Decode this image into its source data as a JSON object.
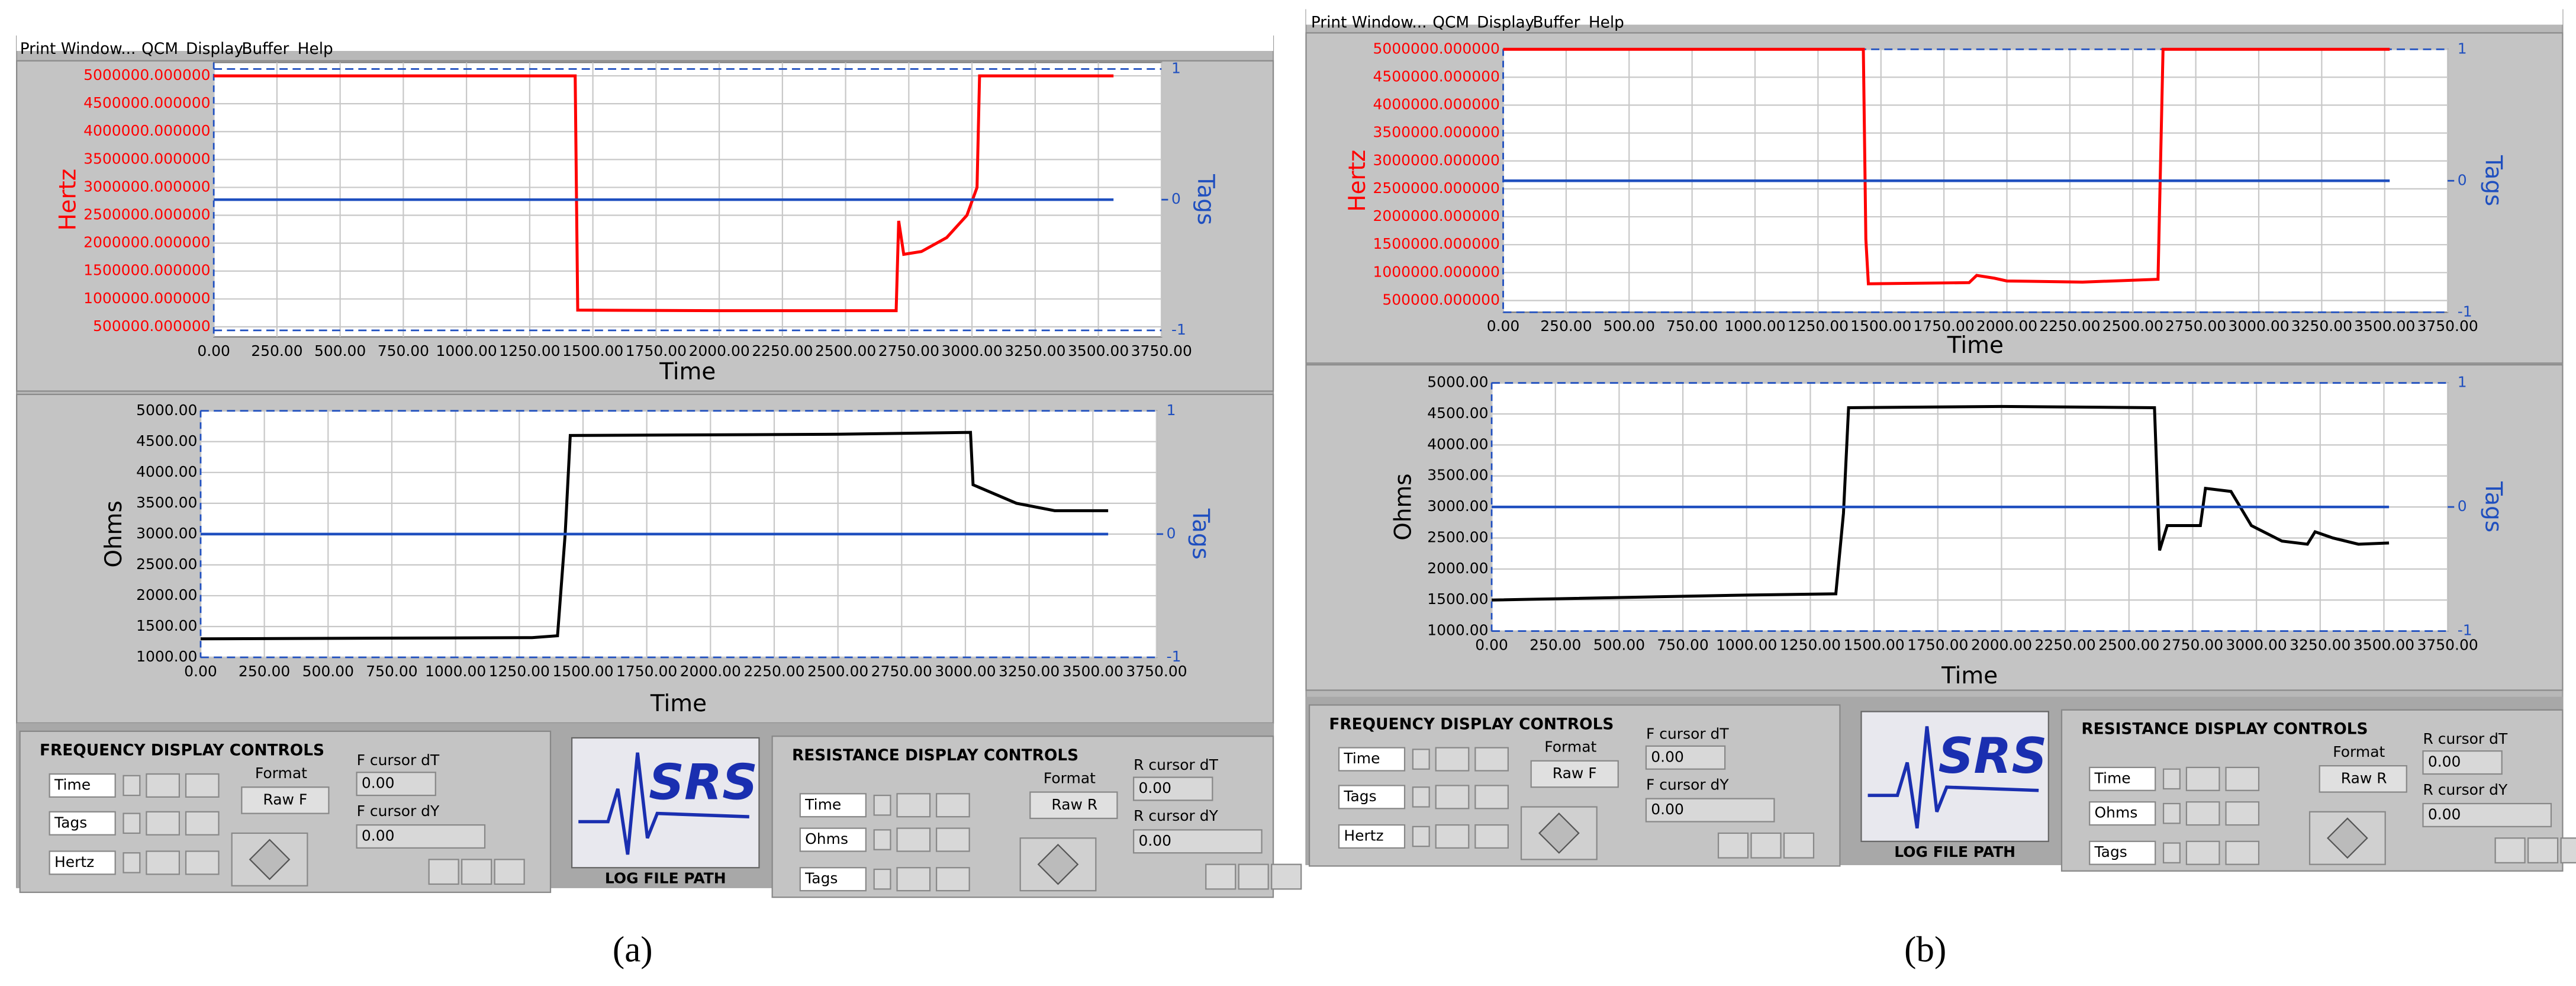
{
  "panels": [
    {
      "caption": "(a)",
      "menu": [
        "Print Window...",
        "QCM",
        "Display",
        "Buffer",
        "Help"
      ],
      "chart_data": [
        {
          "type": "line",
          "ylabel": "Hertz",
          "y2label": "Tags",
          "xlabel": "Time",
          "xlim": [
            0,
            3750
          ],
          "xticks": [
            {
              "value": 0,
              "label": "0.00"
            },
            {
              "value": 250,
              "label": "250.00"
            },
            {
              "value": 500,
              "label": "500.00"
            },
            {
              "value": 750,
              "label": "750.00"
            },
            {
              "value": 1000,
              "label": "1000.00"
            },
            {
              "value": 1250,
              "label": "1250.00"
            },
            {
              "value": 1500,
              "label": "1500.00"
            },
            {
              "value": 1750,
              "label": "1750.00"
            },
            {
              "value": 2000,
              "label": "2000.00"
            },
            {
              "value": 2250,
              "label": "2250.00"
            },
            {
              "value": 2500,
              "label": "2500.00"
            },
            {
              "value": 2750,
              "label": "2750.00"
            },
            {
              "value": 3000,
              "label": "3000.00"
            },
            {
              "value": 3250,
              "label": "3250.00"
            },
            {
              "value": 3500,
              "label": "3500.00"
            },
            {
              "value": 3750,
              "label": "3750.00"
            }
          ],
          "ylim": [
            320000,
            5240000
          ],
          "yticks": [
            {
              "value": 500000,
              "label": "500000.000000"
            },
            {
              "value": 1000000,
              "label": "1000000.000000"
            },
            {
              "value": 1500000,
              "label": "1500000.000000"
            },
            {
              "value": 2000000,
              "label": "2000000.000000"
            },
            {
              "value": 2500000,
              "label": "2500000.000000"
            },
            {
              "value": 3000000,
              "label": "3000000.000000"
            },
            {
              "value": 3500000,
              "label": "3500000.000000"
            },
            {
              "value": 4000000,
              "label": "4000000.000000"
            },
            {
              "value": 4500000,
              "label": "4500000.000000"
            },
            {
              "value": 5000000,
              "label": "5000000.000000"
            }
          ],
          "y2lim": [
            -1.05,
            1.05
          ],
          "y2ticks": [
            -1,
            0,
            1
          ],
          "grid": true,
          "series": [
            {
              "name": "Hertz",
              "color": "#ff0000",
              "x": [
                0,
                1430,
                1440,
                2000,
                2700,
                2710,
                2730,
                2800,
                2900,
                2980,
                3020,
                3030,
                3560
              ],
              "values": [
                5000000,
                5000000,
                800000,
                790000,
                790000,
                2400000,
                1800000,
                1850000,
                2100000,
                2500000,
                3000000,
                5000000,
                5000000
              ]
            },
            {
              "name": "Tags",
              "color": "#1f4fbf",
              "axis": "y2",
              "x": [
                0,
                3560
              ],
              "values": [
                0,
                0
              ]
            }
          ]
        },
        {
          "type": "line",
          "ylabel": "Ohms",
          "y2label": "Tags",
          "xlabel": "Time",
          "xlim": [
            0,
            3750
          ],
          "xticks": [
            {
              "value": 0,
              "label": "0.00"
            },
            {
              "value": 250,
              "label": "250.00"
            },
            {
              "value": 500,
              "label": "500.00"
            },
            {
              "value": 750,
              "label": "750.00"
            },
            {
              "value": 1000,
              "label": "1000.00"
            },
            {
              "value": 1250,
              "label": "1250.00"
            },
            {
              "value": 1500,
              "label": "1500.00"
            },
            {
              "value": 1750,
              "label": "1750.00"
            },
            {
              "value": 2000,
              "label": "2000.00"
            },
            {
              "value": 2250,
              "label": "2250.00"
            },
            {
              "value": 2500,
              "label": "2500.00"
            },
            {
              "value": 2750,
              "label": "2750.00"
            },
            {
              "value": 3000,
              "label": "3000.00"
            },
            {
              "value": 3250,
              "label": "3250.00"
            },
            {
              "value": 3500,
              "label": "3500.00"
            },
            {
              "value": 3750,
              "label": "3750.00"
            }
          ],
          "ylim": [
            1000,
            5000
          ],
          "yticks": [
            {
              "value": 1000,
              "label": "1000.00"
            },
            {
              "value": 1500,
              "label": "1500.00"
            },
            {
              "value": 2000,
              "label": "2000.00"
            },
            {
              "value": 2500,
              "label": "2500.00"
            },
            {
              "value": 3000,
              "label": "3000.00"
            },
            {
              "value": 3500,
              "label": "3500.00"
            },
            {
              "value": 4000,
              "label": "4000.00"
            },
            {
              "value": 4500,
              "label": "4500.00"
            },
            {
              "value": 5000,
              "label": "5000.00"
            }
          ],
          "y2lim": [
            -1,
            1
          ],
          "y2ticks": [
            -1,
            0,
            1
          ],
          "grid": true,
          "series": [
            {
              "name": "Ohms",
              "color": "#000000",
              "x": [
                0,
                1300,
                1400,
                1430,
                1450,
                2500,
                3020,
                3030,
                3200,
                3350,
                3560
              ],
              "values": [
                1300,
                1320,
                1350,
                3000,
                4600,
                4620,
                4650,
                3800,
                3500,
                3380,
                3380
              ]
            },
            {
              "name": "Tags",
              "color": "#1f4fbf",
              "axis": "y2",
              "x": [
                0,
                3560
              ],
              "values": [
                0,
                0
              ]
            }
          ]
        }
      ],
      "controls": {
        "frequency": {
          "title": "FREQUENCY DISPLAY CONTROLS",
          "rows": [
            "Time",
            "Tags",
            "Hertz"
          ],
          "format_label": "Format",
          "format": "Raw F",
          "cursor_dt_label": "F cursor dT",
          "cursor_dt": "0.00",
          "cursor_dy_label": "F cursor dY",
          "cursor_dy": "0.00"
        },
        "logo": "SRS",
        "log_file_path": "LOG FILE PATH",
        "resistance": {
          "title": "RESISTANCE DISPLAY CONTROLS",
          "rows": [
            "Time",
            "Ohms",
            "Tags"
          ],
          "format_label": "Format",
          "format": "Raw R",
          "cursor_dt_label": "R cursor dT",
          "cursor_dt": "0.00",
          "cursor_dy_label": "R cursor dY",
          "cursor_dy": "0.00"
        }
      }
    },
    {
      "caption": "(b)",
      "menu": [
        "Print Window...",
        "QCM",
        "Display",
        "Buffer",
        "Help"
      ],
      "chart_data": [
        {
          "type": "line",
          "ylabel": "Hertz",
          "y2label": "Tags",
          "xlabel": "Time",
          "xlim": [
            0,
            3750
          ],
          "xticks": [
            {
              "value": 0,
              "label": "0.00"
            },
            {
              "value": 250,
              "label": "250.00"
            },
            {
              "value": 500,
              "label": "500.00"
            },
            {
              "value": 750,
              "label": "750.00"
            },
            {
              "value": 1000,
              "label": "1000.00"
            },
            {
              "value": 1250,
              "label": "1250.00"
            },
            {
              "value": 1500,
              "label": "1500.00"
            },
            {
              "value": 1750,
              "label": "1750.00"
            },
            {
              "value": 2000,
              "label": "2000.00"
            },
            {
              "value": 2250,
              "label": "2250.00"
            },
            {
              "value": 2500,
              "label": "2500.00"
            },
            {
              "value": 2750,
              "label": "2750.00"
            },
            {
              "value": 3000,
              "label": "3000.00"
            },
            {
              "value": 3250,
              "label": "3250.00"
            },
            {
              "value": 3500,
              "label": "3500.00"
            },
            {
              "value": 3750,
              "label": "3750.00"
            }
          ],
          "ylim": [
            290000,
            5000000
          ],
          "yticks": [
            {
              "value": 500000,
              "label": "500000.000000"
            },
            {
              "value": 1000000,
              "label": "1000000.000000"
            },
            {
              "value": 1500000,
              "label": "1500000.000000"
            },
            {
              "value": 2000000,
              "label": "2000000.000000"
            },
            {
              "value": 2500000,
              "label": "2500000.000000"
            },
            {
              "value": 3000000,
              "label": "3000000.000000"
            },
            {
              "value": 3500000,
              "label": "3500000.000000"
            },
            {
              "value": 4000000,
              "label": "4000000.000000"
            },
            {
              "value": 4500000,
              "label": "4500000.000000"
            },
            {
              "value": 5000000,
              "label": "5000000.000000"
            }
          ],
          "y2lim": [
            -1,
            1
          ],
          "y2ticks": [
            -1,
            0,
            1
          ],
          "grid": true,
          "series": [
            {
              "name": "Hertz",
              "color": "#ff0000",
              "x": [
                0,
                1430,
                1440,
                1450,
                1850,
                1880,
                1950,
                2000,
                2300,
                2600,
                2620,
                3520
              ],
              "values": [
                5000000,
                5000000,
                1600000,
                800000,
                820000,
                950000,
                900000,
                850000,
                830000,
                880000,
                5000000,
                5000000
              ]
            },
            {
              "name": "Tags",
              "color": "#1f4fbf",
              "axis": "y2",
              "x": [
                0,
                3520
              ],
              "values": [
                0,
                0
              ]
            }
          ]
        },
        {
          "type": "line",
          "ylabel": "Ohms",
          "y2label": "Tags",
          "xlabel": "Time",
          "xlim": [
            0,
            3750
          ],
          "xticks": [
            {
              "value": 0,
              "label": "0.00"
            },
            {
              "value": 250,
              "label": "250.00"
            },
            {
              "value": 500,
              "label": "500.00"
            },
            {
              "value": 750,
              "label": "750.00"
            },
            {
              "value": 1000,
              "label": "1000.00"
            },
            {
              "value": 1250,
              "label": "1250.00"
            },
            {
              "value": 1500,
              "label": "1500.00"
            },
            {
              "value": 1750,
              "label": "1750.00"
            },
            {
              "value": 2000,
              "label": "2000.00"
            },
            {
              "value": 2250,
              "label": "2250.00"
            },
            {
              "value": 2500,
              "label": "2500.00"
            },
            {
              "value": 2750,
              "label": "2750.00"
            },
            {
              "value": 3000,
              "label": "3000.00"
            },
            {
              "value": 3250,
              "label": "3250.00"
            },
            {
              "value": 3500,
              "label": "3500.00"
            },
            {
              "value": 3750,
              "label": "3750.00"
            }
          ],
          "ylim": [
            1000,
            5000
          ],
          "yticks": [
            {
              "value": 1000,
              "label": "1000.00"
            },
            {
              "value": 1500,
              "label": "1500.00"
            },
            {
              "value": 2000,
              "label": "2000.00"
            },
            {
              "value": 2500,
              "label": "2500.00"
            },
            {
              "value": 3000,
              "label": "3000.00"
            },
            {
              "value": 3500,
              "label": "3500.00"
            },
            {
              "value": 4000,
              "label": "4000.00"
            },
            {
              "value": 4500,
              "label": "4500.00"
            },
            {
              "value": 5000,
              "label": "5000.00"
            }
          ],
          "y2lim": [
            -1,
            1
          ],
          "y2ticks": [
            -1,
            0,
            1
          ],
          "grid": true,
          "series": [
            {
              "name": "Ohms",
              "color": "#000000",
              "x": [
                0,
                1000,
                1350,
                1380,
                1400,
                2000,
                2600,
                2620,
                2650,
                2780,
                2800,
                2900,
                2980,
                3100,
                3200,
                3230,
                3300,
                3400,
                3520
              ],
              "values": [
                1500,
                1580,
                1600,
                2900,
                4600,
                4620,
                4600,
                2300,
                2700,
                2700,
                3300,
                3250,
                2700,
                2450,
                2400,
                2600,
                2500,
                2400,
                2420
              ]
            },
            {
              "name": "Tags",
              "color": "#1f4fbf",
              "axis": "y2",
              "x": [
                0,
                3520
              ],
              "values": [
                0,
                0
              ]
            }
          ]
        }
      ],
      "controls": {
        "frequency": {
          "title": "FREQUENCY DISPLAY CONTROLS",
          "rows": [
            "Time",
            "Tags",
            "Hertz"
          ],
          "format_label": "Format",
          "format": "Raw F",
          "cursor_dt_label": "F cursor dT",
          "cursor_dt": "0.00",
          "cursor_dy_label": "F cursor dY",
          "cursor_dy": "0.00"
        },
        "logo": "SRS",
        "log_file_path": "LOG FILE PATH",
        "resistance": {
          "title": "RESISTANCE DISPLAY CONTROLS",
          "rows": [
            "Time",
            "Ohms",
            "Tags"
          ],
          "format_label": "Format",
          "format": "Raw R",
          "cursor_dt_label": "R cursor dT",
          "cursor_dt": "0.00",
          "cursor_dy_label": "R cursor dY",
          "cursor_dy": "0.00"
        }
      }
    }
  ]
}
